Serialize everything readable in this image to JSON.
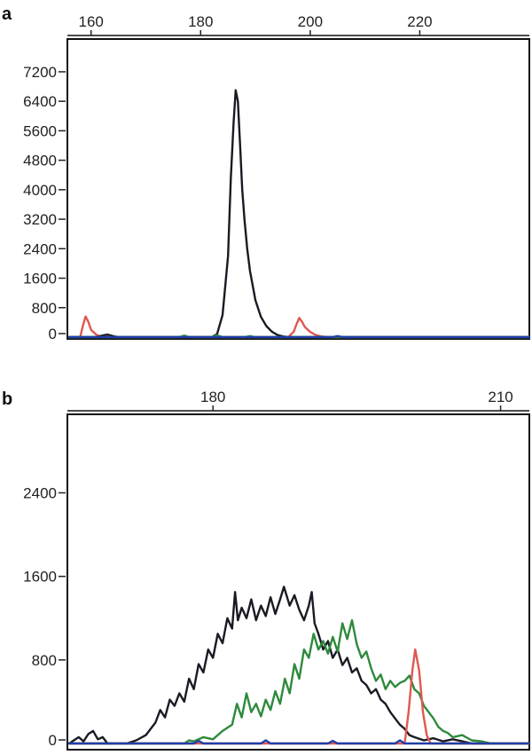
{
  "chart_data": [
    {
      "panel": "a",
      "type": "line",
      "x_ticks": [
        160,
        180,
        200,
        220
      ],
      "x_tick_labels": [
        "160",
        "180",
        "200",
        "220"
      ],
      "xlim": [
        156,
        240
      ],
      "y_ticks": [
        0,
        800,
        1600,
        2400,
        3200,
        4000,
        4800,
        5600,
        6400,
        7200
      ],
      "y_tick_labels": [
        "0",
        "800",
        "1600",
        "2400",
        "3200",
        "4000",
        "4800",
        "5600",
        "6400",
        "7200"
      ],
      "ylim": [
        0,
        7800
      ],
      "series": [
        {
          "color": "#e0584f",
          "x": [
            156,
            158,
            158.5,
            159,
            159.5,
            160,
            161,
            162,
            163,
            164,
            194,
            196,
            197,
            197.5,
            198,
            198.5,
            199,
            200,
            201,
            202,
            203,
            240
          ],
          "y": [
            0,
            0,
            300,
            560,
            420,
            200,
            60,
            10,
            0,
            0,
            0,
            0,
            150,
            350,
            520,
            420,
            280,
            140,
            60,
            20,
            0,
            0
          ]
        },
        {
          "color": "#1a1a24",
          "x": [
            156,
            160,
            161,
            162,
            163,
            164,
            165,
            180,
            181,
            182,
            183,
            184,
            185,
            185.5,
            186,
            186.4,
            186.8,
            187.2,
            187.6,
            188,
            188.5,
            189,
            190,
            191,
            192,
            193,
            194,
            195,
            196,
            240
          ],
          "y": [
            0,
            0,
            0,
            40,
            70,
            30,
            0,
            0,
            0,
            0,
            80,
            600,
            2200,
            4300,
            5800,
            6700,
            6400,
            5200,
            4000,
            3200,
            2400,
            1800,
            1000,
            550,
            300,
            150,
            60,
            20,
            0,
            0
          ]
        },
        {
          "color": "#2e8a3c",
          "x": [
            156,
            176,
            177,
            178,
            179,
            182,
            183,
            184,
            188,
            189,
            190,
            240
          ],
          "y": [
            0,
            0,
            40,
            0,
            0,
            0,
            50,
            0,
            0,
            30,
            0,
            0
          ]
        },
        {
          "color": "#1f3ea8",
          "x": [
            156,
            204,
            205,
            206,
            240
          ],
          "y": [
            0,
            0,
            30,
            0,
            0
          ]
        }
      ]
    },
    {
      "panel": "b",
      "type": "line",
      "x_ticks": [
        180,
        210
      ],
      "x_tick_labels": [
        "180",
        "210"
      ],
      "xlim": [
        165,
        213
      ],
      "y_ticks": [
        0,
        800,
        1600,
        2400
      ],
      "y_tick_labels": [
        "0",
        "800",
        "1600",
        "2400"
      ],
      "ylim": [
        0,
        3050
      ],
      "series": [
        {
          "color": "#1a1a24",
          "x": [
            165,
            166,
            166.5,
            167,
            167.5,
            168,
            168.5,
            169,
            171,
            172,
            173,
            174,
            174.5,
            175,
            175.5,
            176,
            176.5,
            177,
            177.5,
            178,
            178.5,
            179,
            179.5,
            180,
            180.5,
            181,
            181.5,
            182,
            182.3,
            182.6,
            183,
            183.5,
            184,
            184.5,
            185,
            185.5,
            186,
            186.5,
            187,
            187.4,
            188,
            188.5,
            189,
            189.5,
            190,
            190.3,
            190.6,
            191,
            191.5,
            192,
            192.5,
            193,
            193.5,
            194,
            194.5,
            195,
            195.5,
            196,
            196.5,
            197,
            197.5,
            198,
            198.5,
            199,
            199.5,
            200,
            200.5,
            201,
            202,
            203,
            204,
            205,
            206,
            207,
            213
          ],
          "y": [
            0,
            60,
            20,
            90,
            120,
            40,
            60,
            0,
            0,
            30,
            80,
            200,
            320,
            250,
            420,
            360,
            480,
            400,
            620,
            520,
            760,
            680,
            900,
            820,
            1050,
            960,
            1200,
            1100,
            1450,
            1180,
            1300,
            1200,
            1380,
            1180,
            1320,
            1220,
            1400,
            1240,
            1380,
            1500,
            1320,
            1420,
            1280,
            1180,
            1320,
            1450,
            1150,
            1050,
            900,
            980,
            820,
            900,
            750,
            820,
            680,
            720,
            600,
            560,
            480,
            520,
            420,
            380,
            300,
            240,
            180,
            140,
            80,
            60,
            30,
            50,
            20,
            40,
            20,
            0,
            0
          ]
        },
        {
          "color": "#2e8a3c",
          "x": [
            165,
            177,
            177.5,
            178,
            179,
            180,
            181,
            182,
            182.5,
            183,
            183.5,
            184,
            184.5,
            185,
            185.5,
            186,
            186.5,
            187,
            187.5,
            188,
            188.5,
            189,
            189.5,
            190,
            190.5,
            191,
            191.5,
            192,
            192.5,
            193,
            193.5,
            194,
            194.5,
            195,
            195.5,
            196,
            196.5,
            197,
            197.5,
            198,
            198.5,
            199,
            199.5,
            200,
            200.5,
            201,
            201.5,
            202,
            202.5,
            203,
            203.5,
            204,
            204.5,
            205,
            206,
            207,
            208,
            209,
            213
          ],
          "y": [
            0,
            0,
            30,
            20,
            60,
            40,
            120,
            180,
            380,
            250,
            480,
            300,
            380,
            260,
            420,
            320,
            500,
            380,
            620,
            480,
            760,
            620,
            900,
            820,
            1050,
            900,
            980,
            860,
            1020,
            880,
            1150,
            1000,
            1180,
            950,
            820,
            880,
            720,
            600,
            660,
            520,
            600,
            540,
            580,
            600,
            650,
            520,
            480,
            360,
            300,
            240,
            160,
            120,
            100,
            60,
            80,
            30,
            20,
            0,
            0
          ]
        },
        {
          "color": "#e0584f",
          "x": [
            165,
            200,
            200.4,
            200.8,
            201.1,
            201.5,
            201.9,
            202.3,
            202.7,
            213
          ],
          "y": [
            0,
            0,
            300,
            700,
            900,
            700,
            300,
            80,
            0,
            0
          ]
        },
        {
          "color": "#1f3ea8",
          "x": [
            165,
            178,
            178.5,
            179,
            185,
            185.5,
            186,
            192,
            192.5,
            193,
            199,
            199.5,
            200,
            213
          ],
          "y": [
            0,
            0,
            25,
            0,
            0,
            30,
            0,
            0,
            25,
            0,
            0,
            30,
            0,
            0
          ]
        }
      ]
    }
  ]
}
